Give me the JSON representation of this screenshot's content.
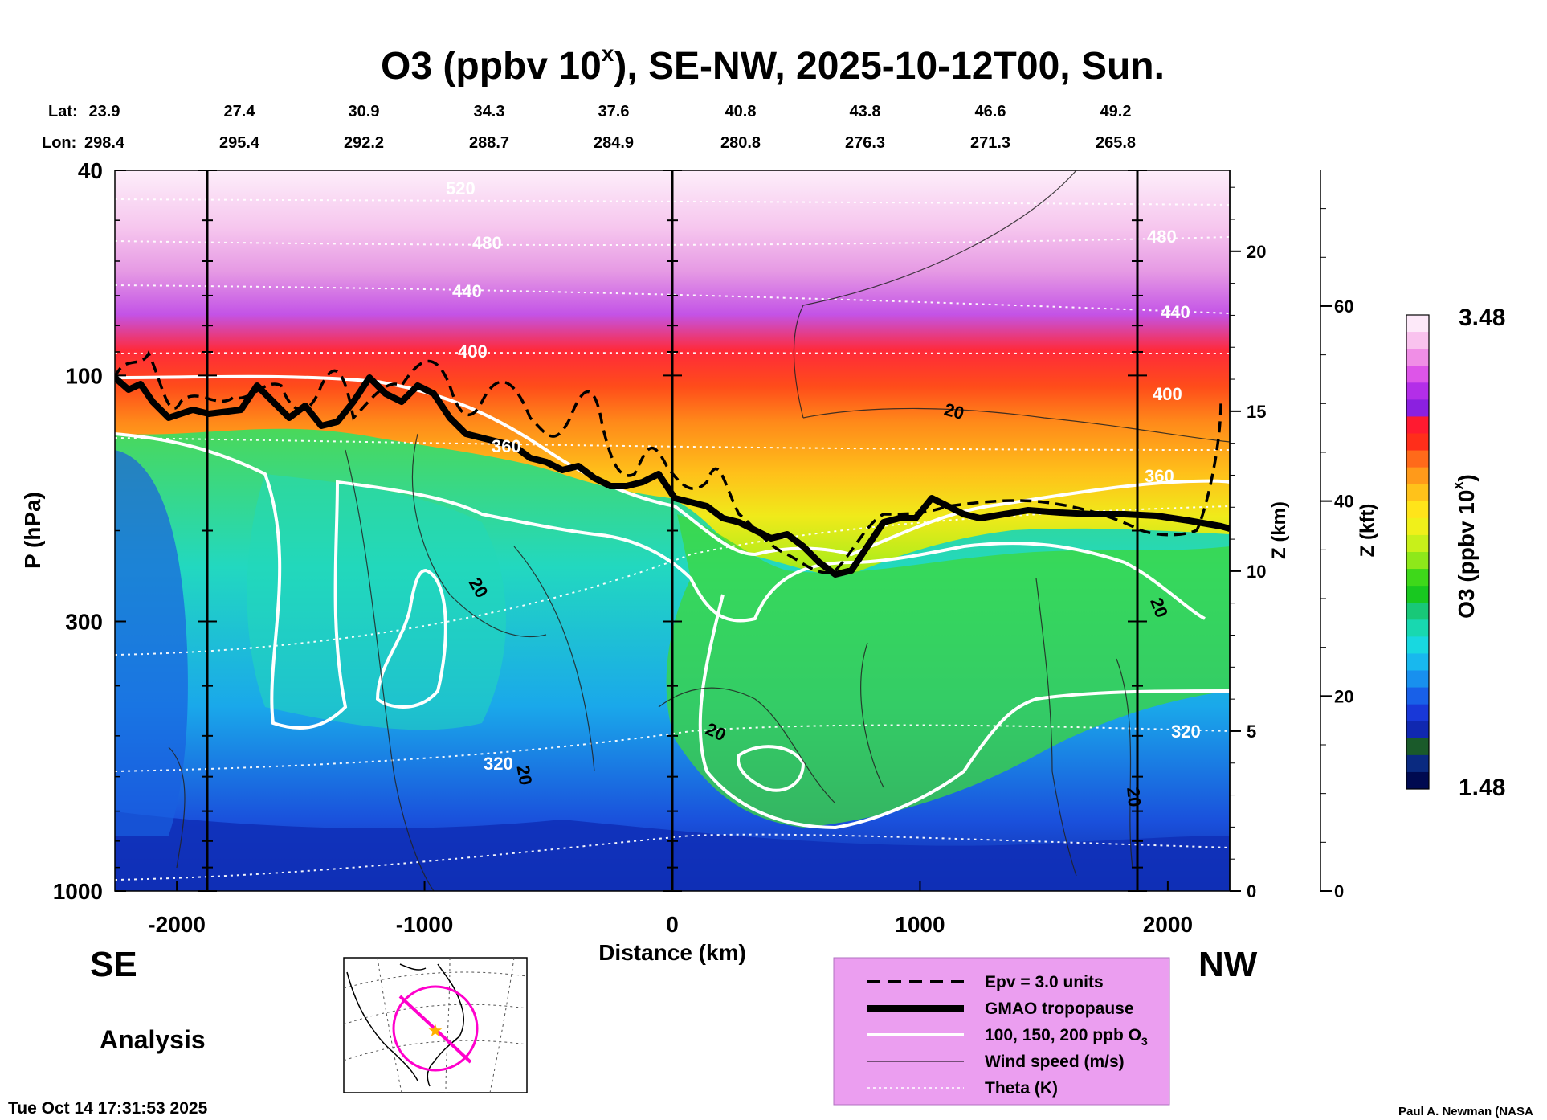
{
  "chart_data": {
    "type": "heatmap",
    "title_main": "O3 (ppbv 10",
    "title_sup": "x",
    "title_rest": "), SE-NW, 2025-10-12T00, Sun.",
    "lat_label": "Lat:",
    "lon_label": "Lon:",
    "lat": [
      "23.9",
      "27.4",
      "30.9",
      "34.3",
      "37.6",
      "40.8",
      "43.8",
      "46.6",
      "49.2"
    ],
    "lon": [
      "298.4",
      "295.4",
      "292.2",
      "288.7",
      "284.9",
      "280.8",
      "276.3",
      "271.3",
      "265.8"
    ],
    "xlabel": "Distance (km)",
    "xticks": [
      -2000,
      -1000,
      0,
      1000,
      2000
    ],
    "xlim": [
      -2250,
      2250
    ],
    "ylabel": "P (hPa)",
    "yticks": [
      40,
      100,
      300,
      1000
    ],
    "ylim": [
      1000,
      40
    ],
    "yscale": "log",
    "zlabel_km": "Z (km)",
    "zticks_km": [
      0,
      5,
      10,
      15,
      20
    ],
    "zlabel_kft": "Z (kft)",
    "zticks_kft": [
      0,
      20,
      40,
      60
    ],
    "colorbar": {
      "label_main": "O3 (ppbv 10",
      "label_sup": "x",
      "label_rest": ")",
      "max": "3.48",
      "min": "1.48",
      "colors": [
        "#fde9f9",
        "#f9c2ee",
        "#f08ee6",
        "#dd55e8",
        "#b32ee8",
        "#8b20e0",
        "#ff1a30",
        "#ff2e1a",
        "#ff6a1a",
        "#ff9a1a",
        "#ffc21a",
        "#ffe41a",
        "#f0f01a",
        "#c8f01a",
        "#8ee81a",
        "#3ed81a",
        "#18c820",
        "#18c878",
        "#18d8b0",
        "#18d8e0",
        "#18b8ee",
        "#1890ee",
        "#1860e8",
        "#1838d8",
        "#1028b0",
        "#1a5a2a",
        "#0a2a80",
        "#000a50"
      ]
    },
    "theta_labels": [
      "520",
      "480",
      "440",
      "400",
      "360",
      "320",
      "480",
      "440",
      "400",
      "360",
      "320"
    ],
    "wind_labels": [
      "20",
      "20",
      "20",
      "20",
      "20",
      "20"
    ],
    "direction_left": "SE",
    "direction_right": "NW",
    "legend": [
      {
        "label": "Epv = 3.0 units",
        "style": "dashed"
      },
      {
        "label": "GMAO tropopause",
        "style": "thick"
      },
      {
        "label": "100, 150, 200 ppb O",
        "sub": "3",
        "style": "white"
      },
      {
        "label": "Wind speed (m/s)",
        "style": "thin"
      },
      {
        "label": "Theta (K)",
        "style": "dotted"
      }
    ]
  },
  "analysis_label": "Analysis",
  "timestamp": "Tue Oct 14 17:31:53 2025",
  "credit": "Paul A. Newman (NASA"
}
